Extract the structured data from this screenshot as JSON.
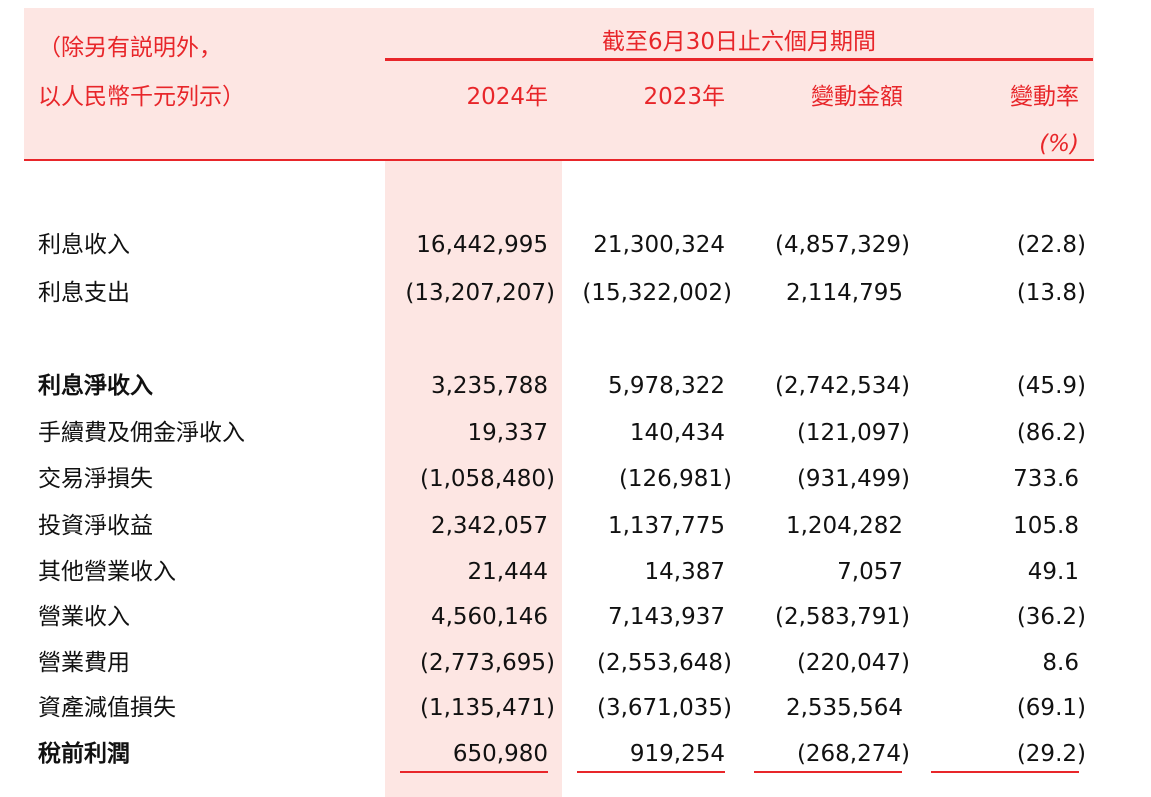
{
  "header": {
    "unit_line1": "（除另有説明外，",
    "unit_line2": "以人民幣千元列示）",
    "period": "截至6月30日止六個月期間",
    "col_2024": "2024年",
    "col_2023": "2023年",
    "col_change": "變動金額",
    "col_rate": "變動率",
    "col_rate_unit": "(%)"
  },
  "rows": [
    {
      "label": "利息收入",
      "v2024": "16,442,995",
      "v2023": "21,300,324",
      "change": "(4,857,329)",
      "rate": "(22.8)"
    },
    {
      "label": "利息支出",
      "v2024": "(13,207,207)",
      "v2023": "(15,322,002)",
      "change": "2,114,795",
      "rate": "(13.8)"
    },
    {
      "label": "利息淨收入",
      "v2024": "3,235,788",
      "v2023": "5,978,322",
      "change": "(2,742,534)",
      "rate": "(45.9)"
    },
    {
      "label": "手續費及佣金淨收入",
      "v2024": "19,337",
      "v2023": "140,434",
      "change": "(121,097)",
      "rate": "(86.2)"
    },
    {
      "label": "交易淨損失",
      "v2024": "(1,058,480)",
      "v2023": "(126,981)",
      "change": "(931,499)",
      "rate": "733.6"
    },
    {
      "label": "投資淨收益",
      "v2024": "2,342,057",
      "v2023": "1,137,775",
      "change": "1,204,282",
      "rate": "105.8"
    },
    {
      "label": "其他營業收入",
      "v2024": "21,444",
      "v2023": "14,387",
      "change": "7,057",
      "rate": "49.1"
    },
    {
      "label": "營業收入",
      "v2024": "4,560,146",
      "v2023": "7,143,937",
      "change": "(2,583,791)",
      "rate": "(36.2)"
    },
    {
      "label": "營業費用",
      "v2024": "(2,773,695)",
      "v2023": "(2,553,648)",
      "change": "(220,047)",
      "rate": "8.6"
    },
    {
      "label": "資產減值損失",
      "v2024": "(1,135,471)",
      "v2023": "(3,671,035)",
      "change": "2,535,564",
      "rate": "(69.1)"
    },
    {
      "label": "稅前利潤",
      "v2024": "650,980",
      "v2023": "919,254",
      "change": "(268,274)",
      "rate": "(29.2)"
    }
  ]
}
